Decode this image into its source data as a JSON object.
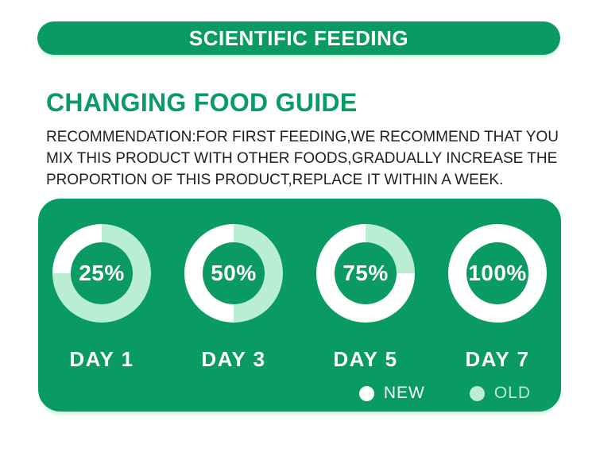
{
  "header": {
    "banner_label": "SCIENTIFIC FEEDING"
  },
  "section": {
    "title": "CHANGING FOOD GUIDE",
    "description": "RECOMMENDATION:FOR FIRST FEEDING,WE RECOMMEND THAT YOU MIX THIS PRODUCT WITH OTHER FOODS,GRADUALLY INCREASE THE PROPORTION OF THIS PRODUCT,REPLACE IT WITHIN A WEEK."
  },
  "colors": {
    "brand_green": "#0a9a64",
    "mint": "#b9eed3",
    "white": "#ffffff",
    "glow": "#c6f4de",
    "text_dark": "#1f1f1f"
  },
  "chart_data": {
    "type": "pie",
    "variant": "donut",
    "title": "CHANGING FOOD GUIDE",
    "categories": [
      "DAY 1",
      "DAY 3",
      "DAY 5",
      "DAY 7"
    ],
    "series": [
      {
        "name": "NEW",
        "values": [
          25,
          50,
          75,
          100
        ],
        "color": "#ffffff"
      },
      {
        "name": "OLD",
        "values": [
          75,
          50,
          25,
          0
        ],
        "color": "#b9eed3"
      }
    ],
    "charts": [
      {
        "day_label": "DAY 1",
        "percent_label": "25%",
        "new_pct": 25,
        "old_pct": 75
      },
      {
        "day_label": "DAY 3",
        "percent_label": "50%",
        "new_pct": 50,
        "old_pct": 50
      },
      {
        "day_label": "DAY 5",
        "percent_label": "75%",
        "new_pct": 75,
        "old_pct": 25
      },
      {
        "day_label": "DAY 7",
        "percent_label": "100%",
        "new_pct": 100,
        "old_pct": 0
      }
    ],
    "legend": [
      {
        "label": "NEW",
        "color": "#ffffff"
      },
      {
        "label": "OLD",
        "color": "#b9eed3"
      }
    ],
    "legend_position": "bottom-right",
    "fill_direction": "counterclockwise-from-top"
  }
}
